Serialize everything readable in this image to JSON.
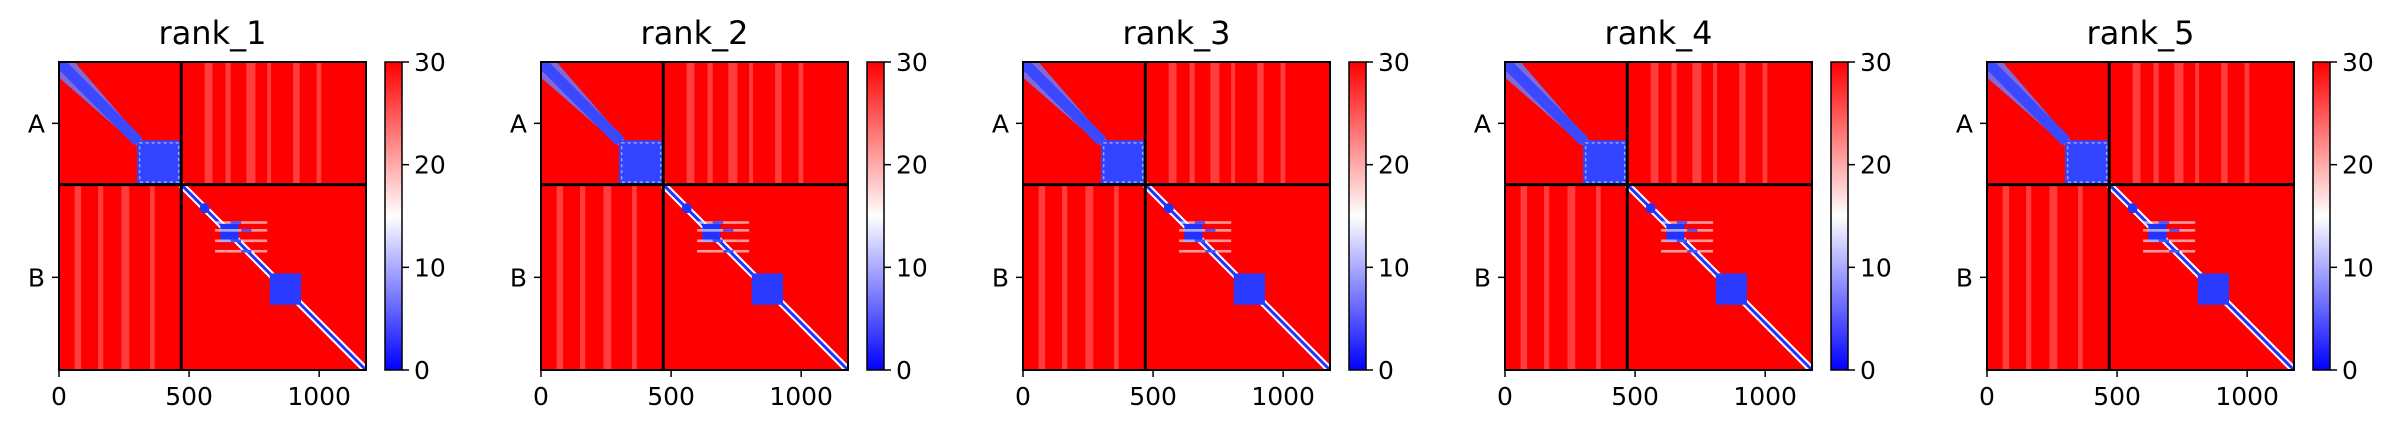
{
  "chart_data": [
    {
      "type": "heatmap",
      "title": "rank_1",
      "chains": [
        "A",
        "B"
      ],
      "chain_boundary": 470,
      "x_range": [
        0,
        1180
      ],
      "xticks": [
        "0",
        "500",
        "1000"
      ],
      "colorbar": {
        "range": [
          0,
          30
        ],
        "ticks": [
          "0",
          "10",
          "20",
          "30"
        ],
        "colormap": "bwr"
      }
    },
    {
      "type": "heatmap",
      "title": "rank_2",
      "chains": [
        "A",
        "B"
      ],
      "chain_boundary": 470,
      "x_range": [
        0,
        1180
      ],
      "xticks": [
        "0",
        "500",
        "1000"
      ],
      "colorbar": {
        "range": [
          0,
          30
        ],
        "ticks": [
          "0",
          "10",
          "20",
          "30"
        ],
        "colormap": "bwr"
      }
    },
    {
      "type": "heatmap",
      "title": "rank_3",
      "chains": [
        "A",
        "B"
      ],
      "chain_boundary": 470,
      "x_range": [
        0,
        1180
      ],
      "xticks": [
        "0",
        "500",
        "1000"
      ],
      "colorbar": {
        "range": [
          0,
          30
        ],
        "ticks": [
          "0",
          "10",
          "20",
          "30"
        ],
        "colormap": "bwr"
      }
    },
    {
      "type": "heatmap",
      "title": "rank_4",
      "chains": [
        "A",
        "B"
      ],
      "chain_boundary": 470,
      "x_range": [
        0,
        1180
      ],
      "xticks": [
        "0",
        "500",
        "1000"
      ],
      "colorbar": {
        "range": [
          0,
          30
        ],
        "ticks": [
          "0",
          "10",
          "20",
          "30"
        ],
        "colormap": "bwr"
      }
    },
    {
      "type": "heatmap",
      "title": "rank_5",
      "chains": [
        "A",
        "B"
      ],
      "chain_boundary": 470,
      "x_range": [
        0,
        1180
      ],
      "xticks": [
        "0",
        "500",
        "1000"
      ],
      "colorbar": {
        "range": [
          0,
          30
        ],
        "ticks": [
          "0",
          "10",
          "20",
          "30"
        ],
        "colormap": "bwr"
      }
    }
  ],
  "colors": {
    "low": "#0000ff",
    "mid": "#ffffff",
    "high": "#ff0000",
    "divider": "#000000"
  }
}
